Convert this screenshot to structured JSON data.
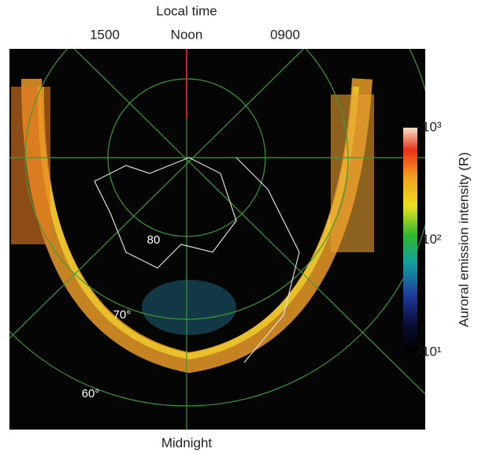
{
  "header": {
    "title": "Local time",
    "top_labels": [
      "1500",
      "Noon",
      "0900"
    ]
  },
  "image": {
    "latitude_labels": [
      "80",
      "70°",
      "60°"
    ],
    "bottom_label": "Midnight"
  },
  "colorbar": {
    "label": "Auroral emission intensity (R)",
    "scale": "log",
    "lim": [
      10,
      1000
    ],
    "ticks": [
      {
        "value": 10,
        "label": "10¹"
      },
      {
        "value": 100,
        "label": "10²"
      },
      {
        "value": 1000,
        "label": "10³"
      }
    ]
  }
}
